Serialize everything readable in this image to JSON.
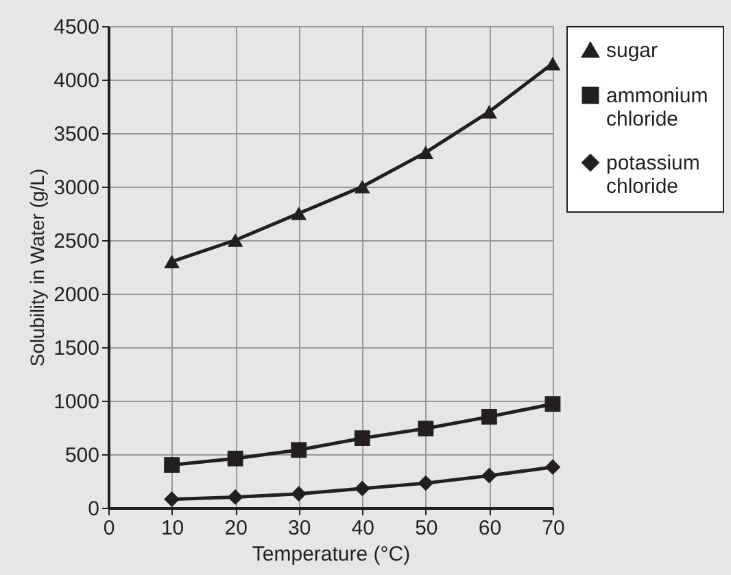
{
  "chart_data": {
    "type": "line",
    "xlabel": "Temperature (°C)",
    "ylabel": "Solubility in Water (g/L)",
    "x": [
      10,
      20,
      30,
      40,
      50,
      60,
      70
    ],
    "series": [
      {
        "name": "sugar",
        "color": "#231f20",
        "marker": "triangle",
        "values": [
          2300,
          2500,
          2750,
          3000,
          3320,
          3700,
          4150
        ]
      },
      {
        "name": "ammonium chloride",
        "color": "#231f20",
        "marker": "square",
        "values": [
          400,
          460,
          540,
          650,
          740,
          850,
          970
        ]
      },
      {
        "name": "potassium chloride",
        "color": "#231f20",
        "marker": "diamond",
        "values": [
          80,
          100,
          130,
          180,
          230,
          300,
          380
        ]
      }
    ],
    "xlim": [
      0,
      70
    ],
    "xticks": [
      0,
      10,
      20,
      30,
      40,
      50,
      60,
      70
    ],
    "ylim": [
      0,
      4500
    ],
    "yticks": [
      0,
      500,
      1000,
      1500,
      2000,
      2500,
      3000,
      3500,
      4000,
      4500
    ],
    "grid": true,
    "legend": "right",
    "line_style": "solid"
  }
}
